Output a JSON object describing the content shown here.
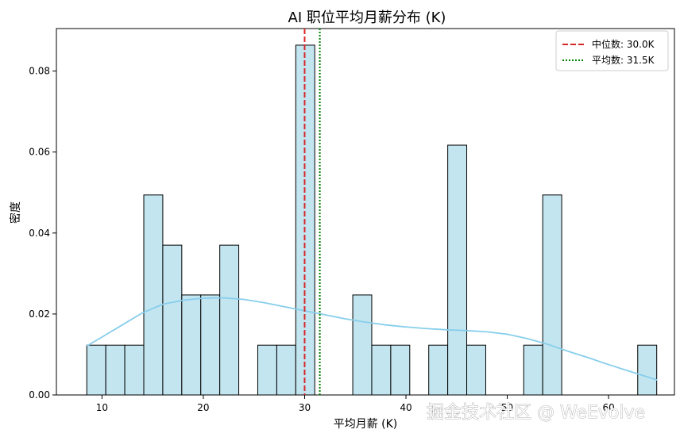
{
  "chart_data": {
    "type": "bar",
    "title": "AI 职位平均月薪分布 (K)",
    "xlabel": "平均月薪 (K)",
    "ylabel": "密度",
    "xlim": [
      5.5,
      66.5
    ],
    "ylim": [
      0,
      0.0905
    ],
    "x_ticks": [
      10,
      20,
      30,
      40,
      50,
      60
    ],
    "y_ticks": [
      0.0,
      0.02,
      0.04,
      0.06,
      0.08
    ],
    "y_tick_format": 2,
    "bins": {
      "start": 8.5,
      "width": 1.875,
      "densities": [
        0.0123,
        0.0123,
        0.0123,
        0.0494,
        0.037,
        0.0247,
        0.0247,
        0.037,
        0,
        0.0123,
        0.0123,
        0.0864,
        0,
        0,
        0.0247,
        0.0123,
        0.0123,
        0,
        0.0123,
        0.0617,
        0.0123,
        0,
        0,
        0.0123,
        0.0494,
        0,
        0,
        0,
        0,
        0.0123
      ],
      "fill_color": "#c3e5f0",
      "edge_color": "#000000"
    },
    "kde": {
      "color": "#87ceeb",
      "x": [
        8.5,
        10,
        12,
        14,
        16,
        18,
        20,
        22,
        24,
        26,
        28,
        30,
        32,
        34,
        36,
        38,
        40,
        42,
        44,
        46,
        48,
        50,
        52,
        54,
        56,
        58,
        60,
        62,
        64.8
      ],
      "y": [
        0.0121,
        0.0143,
        0.0173,
        0.0203,
        0.0224,
        0.0234,
        0.0239,
        0.024,
        0.0236,
        0.0228,
        0.0218,
        0.0208,
        0.0198,
        0.0188,
        0.018,
        0.0173,
        0.0168,
        0.0164,
        0.0161,
        0.0159,
        0.0156,
        0.015,
        0.0139,
        0.0125,
        0.0108,
        0.0092,
        0.0075,
        0.0059,
        0.0037
      ]
    },
    "reference_lines": [
      {
        "label": "中位数: 30.0K",
        "x": 30.0,
        "color": "#d62728",
        "style": "dashed"
      },
      {
        "label": "平均数: 31.5K",
        "x": 31.5,
        "color": "#008000",
        "style": "dotted"
      }
    ],
    "legend_position": "top-right",
    "grid": false
  },
  "watermark": "掘金技术社区 @ WeEvolve"
}
